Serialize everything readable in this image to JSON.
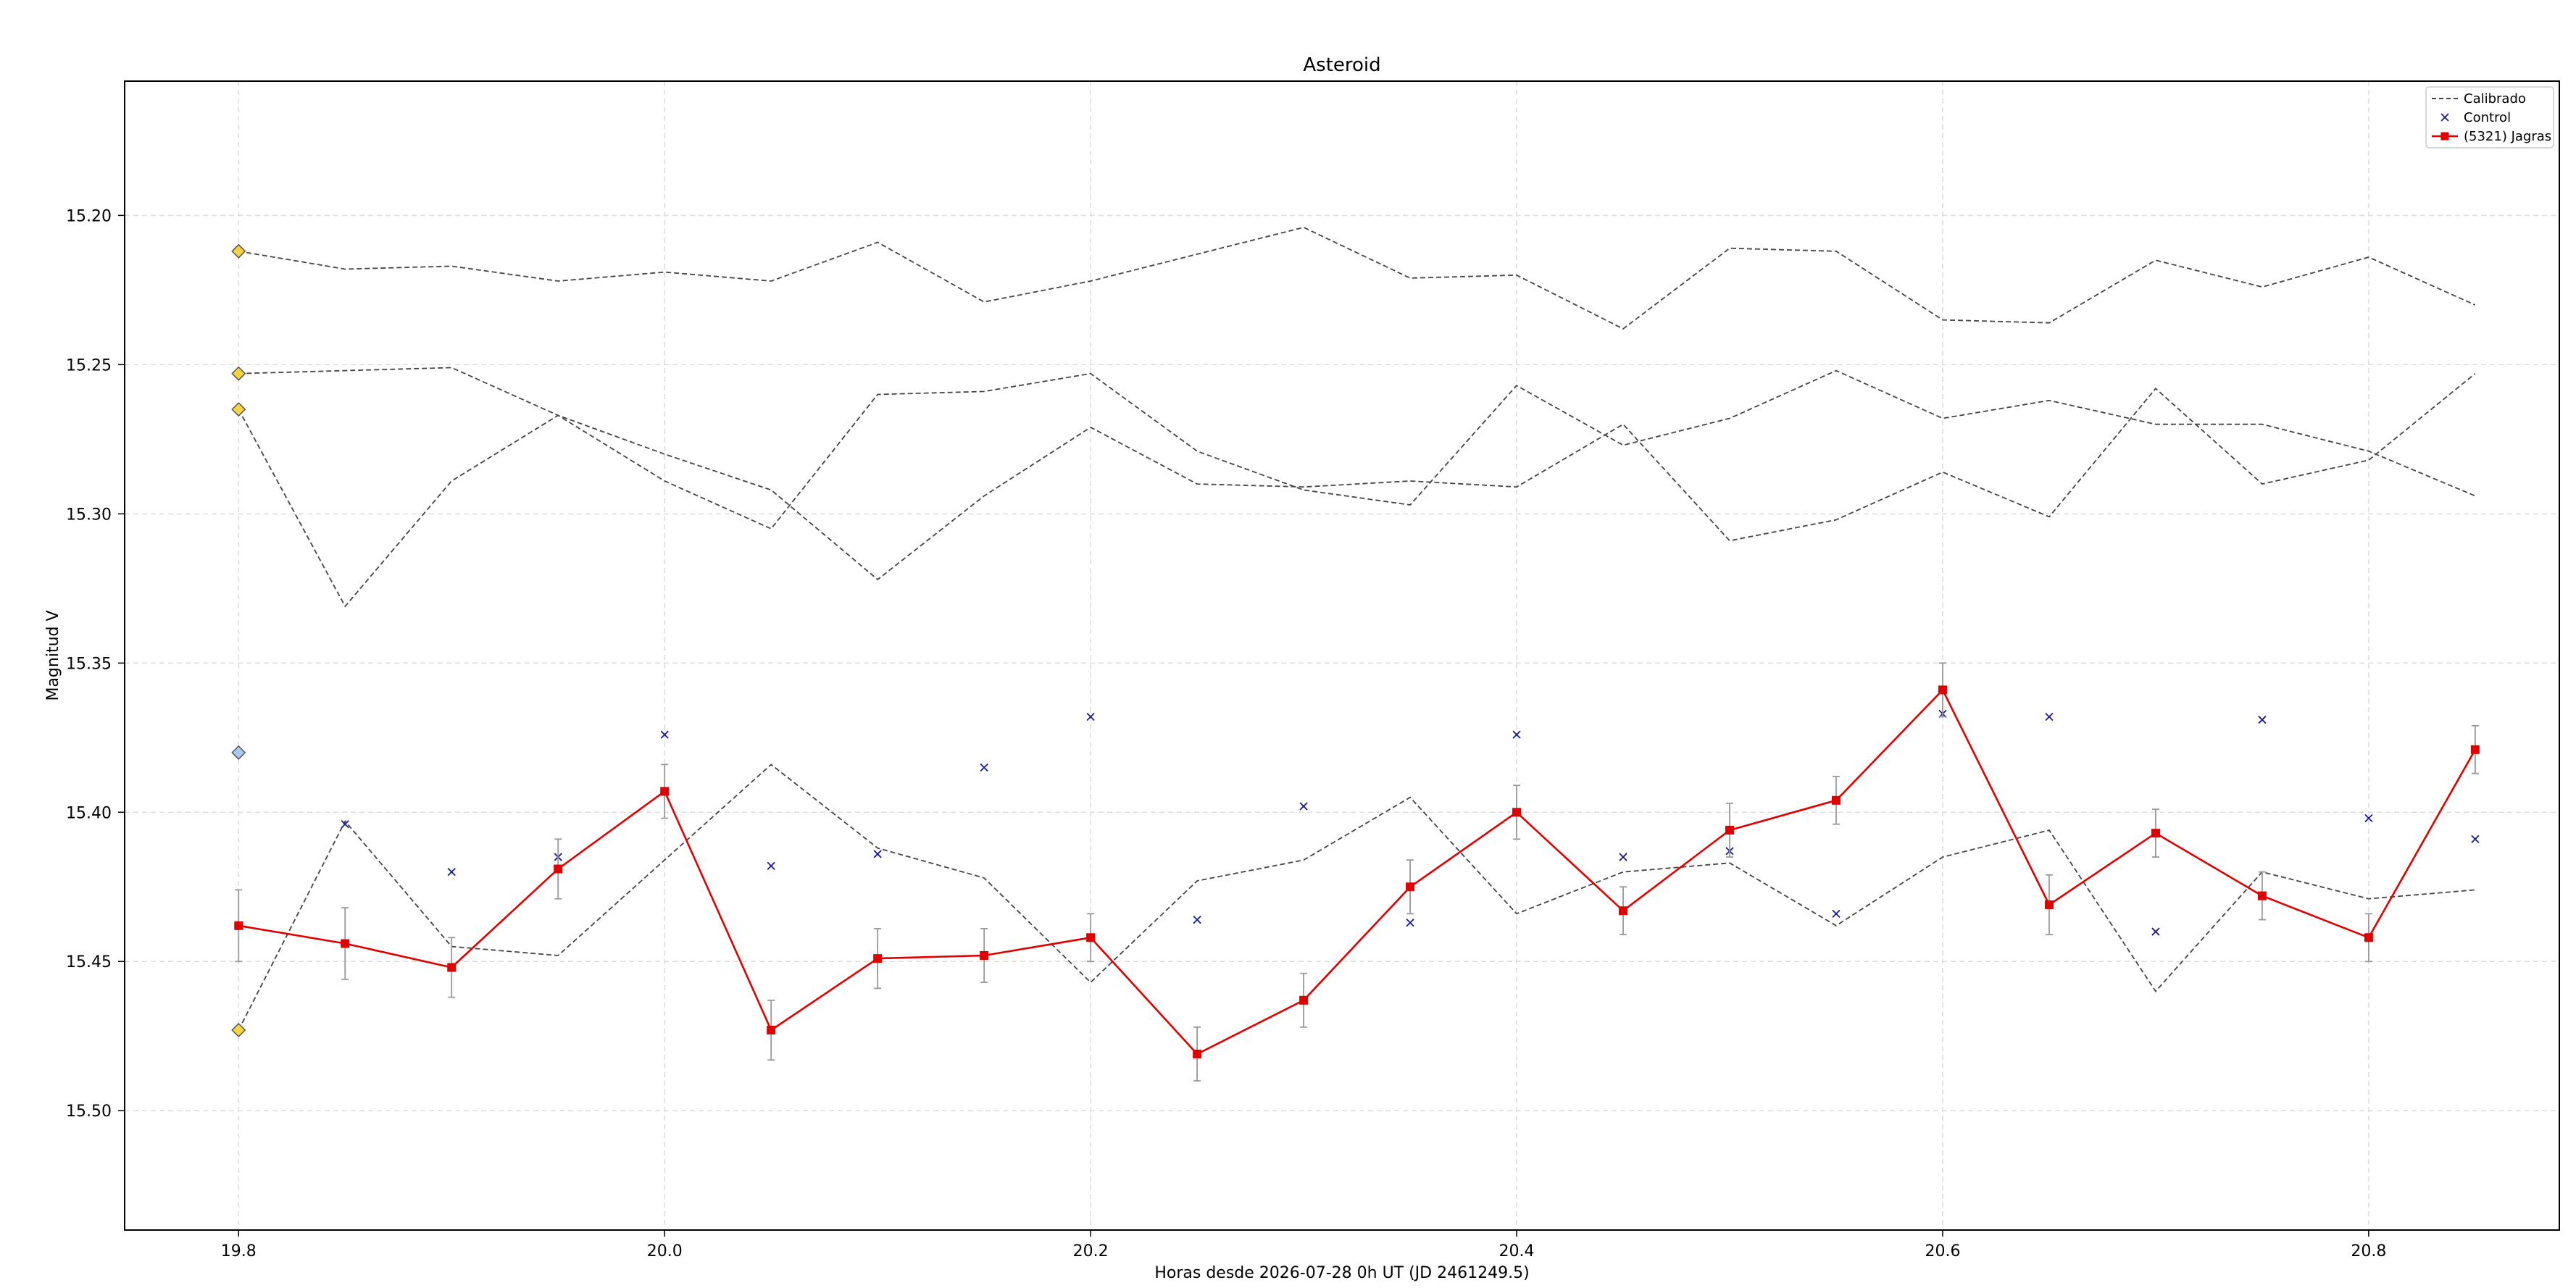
{
  "chart_data": {
    "type": "line",
    "title": "Asteroid",
    "xlabel": "Horas desde 2026-07-28 0h UT (JD 2461249.5)",
    "ylabel": "Magnitud V",
    "xlim": [
      19.7465,
      20.8895
    ],
    "ylim": [
      15.54,
      15.155
    ],
    "y_inverted": true,
    "grid": true,
    "legend_position": "top-right",
    "x_ticks": [
      "19.8",
      "20.0",
      "20.2",
      "20.4",
      "20.6",
      "20.8"
    ],
    "y_ticks": [
      "15.20",
      "15.25",
      "15.30",
      "15.35",
      "15.40",
      "15.45",
      "15.50"
    ],
    "x": [
      19.8,
      19.85,
      19.9,
      19.95,
      20.0,
      20.05,
      20.1,
      20.15,
      20.2,
      20.25,
      20.3,
      20.35,
      20.4,
      20.45,
      20.5,
      20.55,
      20.6,
      20.65,
      20.7,
      20.75,
      20.8,
      20.85
    ],
    "legend": [
      {
        "label": "Calibrado",
        "style": "dashed-line"
      },
      {
        "label": "Control",
        "style": "x-marker"
      },
      {
        "label": "(5321) Jagras",
        "style": "red-line-square"
      }
    ],
    "calibrated_series": [
      [
        15.212,
        15.218,
        15.217,
        15.222,
        15.219,
        15.222,
        15.209,
        15.229,
        15.222,
        15.213,
        15.204,
        15.221,
        15.22,
        15.238,
        15.211,
        15.212,
        15.235,
        15.236,
        15.215,
        15.224,
        15.214,
        15.23
      ],
      [
        15.265,
        15.331,
        15.289,
        15.267,
        15.28,
        15.292,
        15.322,
        15.294,
        15.271,
        15.29,
        15.291,
        15.289,
        15.291,
        15.27,
        15.309,
        15.302,
        15.286,
        15.301,
        15.258,
        15.29,
        15.282,
        15.253
      ],
      [
        15.253,
        15.252,
        15.251,
        15.267,
        15.289,
        15.305,
        15.26,
        15.259,
        15.253,
        15.279,
        15.292,
        15.297,
        15.257,
        15.277,
        15.268,
        15.252,
        15.268,
        15.262,
        15.27,
        15.27,
        15.279,
        15.294
      ],
      [
        15.473,
        15.403,
        15.445,
        15.448,
        15.416,
        15.384,
        15.412,
        15.422,
        15.457,
        15.423,
        15.416,
        15.395,
        15.434,
        15.42,
        15.417,
        15.438,
        15.415,
        15.406,
        15.46,
        15.42,
        15.429,
        15.426
      ]
    ],
    "reference_markers": [
      {
        "x": 19.8,
        "y": 15.212,
        "color": "#f5d442"
      },
      {
        "x": 19.8,
        "y": 15.253,
        "color": "#f5d442"
      },
      {
        "x": 19.8,
        "y": 15.265,
        "color": "#f5d442"
      },
      {
        "x": 19.8,
        "y": 15.38,
        "color": "#a8c8f0"
      },
      {
        "x": 19.8,
        "y": 15.473,
        "color": "#f5d442"
      }
    ],
    "control": {
      "x": [
        19.85,
        19.9,
        19.95,
        20.0,
        20.05,
        20.1,
        20.15,
        20.2,
        20.25,
        20.3,
        20.35,
        20.4,
        20.45,
        20.5,
        20.55,
        20.6,
        20.65,
        20.7,
        20.75,
        20.8,
        20.85
      ],
      "y": [
        15.404,
        15.42,
        15.415,
        15.374,
        15.418,
        15.414,
        15.385,
        15.368,
        15.436,
        15.398,
        15.437,
        15.374,
        15.415,
        15.413,
        15.434,
        15.367,
        15.368,
        15.44,
        15.369,
        15.402,
        15.409
      ]
    },
    "target": {
      "name": "(5321) Jagras",
      "y": [
        15.438,
        15.444,
        15.452,
        15.419,
        15.393,
        15.473,
        15.449,
        15.448,
        15.442,
        15.481,
        15.463,
        15.425,
        15.4,
        15.433,
        15.406,
        15.396,
        15.359,
        15.431,
        15.407,
        15.428,
        15.442,
        15.379
      ],
      "err": [
        0.012,
        0.012,
        0.01,
        0.01,
        0.009,
        0.01,
        0.01,
        0.009,
        0.008,
        0.009,
        0.009,
        0.009,
        0.009,
        0.008,
        0.009,
        0.008,
        0.009,
        0.01,
        0.008,
        0.008,
        0.008,
        0.008
      ]
    },
    "colors": {
      "target": "#e00000",
      "calibrated": "#444444",
      "control": "#1a1a8c",
      "grid": "#dddddd",
      "errorbar": "#999999"
    }
  }
}
